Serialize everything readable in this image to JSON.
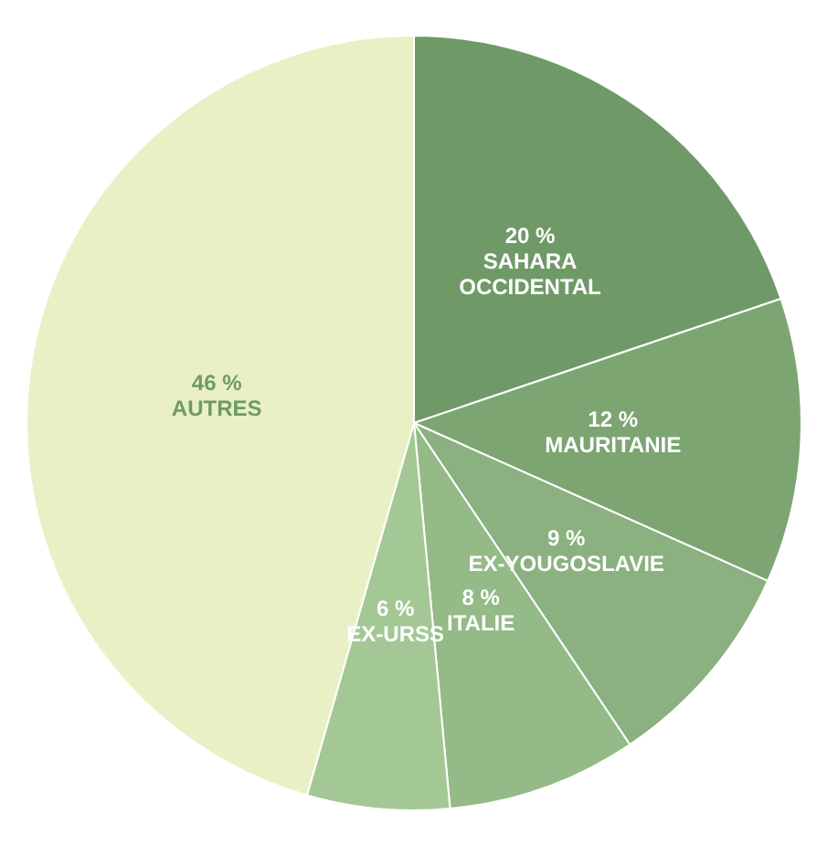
{
  "chart_data": {
    "type": "pie",
    "categories": [
      "SAHARA OCCIDENTAL",
      "MAURITANIE",
      "EX-YOUGOSLAVIE",
      "ITALIE",
      "EX-URSS",
      "AUTRES"
    ],
    "values": [
      20,
      12,
      9,
      8,
      6,
      46
    ],
    "value_labels": [
      "20 %",
      "12 %",
      "9 %",
      "8 %",
      "6 %",
      "46 %"
    ],
    "colors": [
      "#6f9a68",
      "#7da572",
      "#8ab17f",
      "#94ba87",
      "#a3c895",
      "#e9f0c5"
    ],
    "legend": false
  }
}
